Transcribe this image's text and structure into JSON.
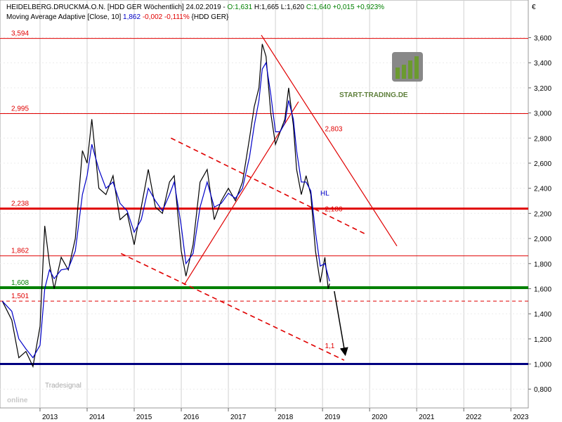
{
  "chart_data": {
    "type": "line",
    "header": {
      "line1": [
        "HEIDELBERG.DRUCKMA.O.N. [HDD GER  Wöchentlich] 24.02.2019 - ",
        "O:1,631",
        " H:1,665 L:1,620 ",
        "C:1,640 +0,015 +0,923%"
      ],
      "line2": [
        "Moving Average Adaptive [Close, 10] ",
        "1,862",
        " -0,002 -0,111%",
        " {HDD GER}"
      ]
    },
    "currency": "€",
    "annotation": "HL",
    "logo": "START-TRADING.DE",
    "watermark": {
      "small": "Tradesignal",
      "big": "online"
    },
    "x": [
      2012.2,
      2012.4,
      2012.55,
      2012.7,
      2012.85,
      2013.0,
      2013.1,
      2013.2,
      2013.3,
      2013.45,
      2013.6,
      2013.75,
      2013.9,
      2014.0,
      2014.1,
      2014.25,
      2014.4,
      2014.55,
      2014.7,
      2014.85,
      2015.0,
      2015.15,
      2015.3,
      2015.45,
      2015.6,
      2015.75,
      2015.85,
      2016.0,
      2016.1,
      2016.25,
      2016.4,
      2016.55,
      2016.7,
      2016.85,
      2017.0,
      2017.15,
      2017.3,
      2017.45,
      2017.55,
      2017.65,
      2017.72,
      2017.8,
      2017.9,
      2018.0,
      2018.1,
      2018.2,
      2018.28,
      2018.38,
      2018.45,
      2018.55,
      2018.65,
      2018.75,
      2018.85,
      2018.95,
      2019.05,
      2019.12,
      2019.15
    ],
    "series": [
      {
        "color": "#000000",
        "values": [
          1.5,
          1.35,
          1.05,
          1.1,
          0.98,
          1.3,
          2.1,
          1.8,
          1.6,
          1.85,
          1.75,
          2.0,
          2.7,
          2.6,
          2.95,
          2.4,
          2.35,
          2.5,
          2.15,
          2.2,
          1.95,
          2.25,
          2.55,
          2.25,
          2.2,
          2.45,
          2.5,
          1.9,
          1.7,
          1.95,
          2.45,
          2.55,
          2.15,
          2.3,
          2.4,
          2.3,
          2.45,
          2.8,
          3.05,
          3.2,
          3.55,
          3.45,
          3.0,
          2.75,
          2.85,
          2.95,
          3.2,
          2.9,
          2.55,
          2.35,
          2.5,
          2.35,
          1.9,
          1.65,
          1.85,
          1.6,
          1.64
        ]
      },
      {
        "color": "#0000c8",
        "values": [
          1.5,
          1.42,
          1.2,
          1.12,
          1.05,
          1.15,
          1.6,
          1.75,
          1.68,
          1.75,
          1.76,
          1.9,
          2.35,
          2.5,
          2.75,
          2.55,
          2.4,
          2.45,
          2.28,
          2.22,
          2.05,
          2.15,
          2.4,
          2.3,
          2.22,
          2.35,
          2.45,
          2.1,
          1.8,
          1.88,
          2.25,
          2.45,
          2.25,
          2.28,
          2.36,
          2.32,
          2.4,
          2.65,
          2.9,
          3.1,
          3.35,
          3.4,
          3.15,
          2.85,
          2.85,
          2.92,
          3.1,
          2.95,
          2.7,
          2.45,
          2.45,
          2.38,
          2.05,
          1.78,
          1.8,
          1.7,
          1.66
        ]
      }
    ],
    "levels": [
      {
        "value": 3.594,
        "label": "3,594",
        "color": "#e00000",
        "width": 1
      },
      {
        "value": 2.995,
        "label": "2,995",
        "color": "#e00000",
        "width": 1
      },
      {
        "value": 2.238,
        "label": "2,238",
        "color": "#e00000",
        "width": 3
      },
      {
        "value": 1.862,
        "label": "1,862",
        "color": "#e00000",
        "width": 1
      },
      {
        "value": 1.608,
        "label": "1,608",
        "color": "#008000",
        "width": 4
      },
      {
        "value": 1.501,
        "label": "1,501",
        "color": "#e00000",
        "width": 1,
        "dash": true
      },
      {
        "value": 1.0,
        "color": "#000080",
        "width": 3
      }
    ],
    "trendlines": [
      {
        "x": [
          2017.7,
          2020.58
        ],
        "y": [
          3.62,
          1.94
        ],
        "color": "#e00000",
        "label": "2,803"
      },
      {
        "x": [
          2016.06,
          2018.49
        ],
        "y": [
          1.63,
          3.09
        ],
        "color": "#e00000"
      },
      {
        "x": [
          2015.78,
          2019.94
        ],
        "y": [
          2.8,
          2.03
        ],
        "color": "#e00000",
        "dash": true,
        "label": "2,186"
      },
      {
        "x": [
          2014.72,
          2019.46
        ],
        "y": [
          1.88,
          1.03
        ],
        "color": "#e00000",
        "dash": true,
        "label": "1,1"
      },
      {
        "x": [
          2019.25,
          2019.48
        ],
        "y": [
          1.58,
          1.08
        ],
        "color": "#000000",
        "arrow": true
      }
    ],
    "xlim": [
      2012.15,
      2023.37
    ],
    "ylim": [
      0.65,
      3.9
    ],
    "xticks": [
      2013,
      2014,
      2015,
      2016,
      2017,
      2018,
      2019,
      2020,
      2021,
      2022,
      2023
    ],
    "yticks": [
      {
        "value": 0.8,
        "label": "0,800"
      },
      {
        "value": 1.0,
        "label": "1,000"
      },
      {
        "value": 1.2,
        "label": "1,200"
      },
      {
        "value": 1.4,
        "label": "1,400"
      },
      {
        "value": 1.6,
        "label": "1,600"
      },
      {
        "value": 1.8,
        "label": "1,800"
      },
      {
        "value": 2.0,
        "label": "2,000"
      },
      {
        "value": 2.2,
        "label": "2,200"
      },
      {
        "value": 2.4,
        "label": "2,400"
      },
      {
        "value": 2.6,
        "label": "2,600"
      },
      {
        "value": 2.8,
        "label": "2,800"
      },
      {
        "value": 3.0,
        "label": "3,000"
      },
      {
        "value": 3.2,
        "label": "3,200"
      },
      {
        "value": 3.4,
        "label": "3,400"
      },
      {
        "value": 3.6,
        "label": "3,600"
      }
    ],
    "grid": true
  }
}
